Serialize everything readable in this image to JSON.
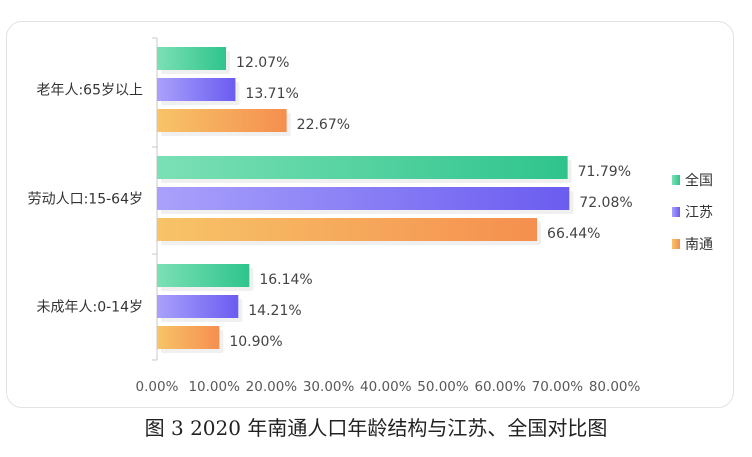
{
  "chart_data": {
    "type": "bar",
    "orientation": "horizontal",
    "categories": [
      "老年人:65岁以上",
      "劳动人口:15-64岁",
      "未成年人:0-14岁"
    ],
    "series": [
      {
        "name": "全国",
        "values": [
          12.07,
          71.79,
          16.14
        ],
        "labels": [
          "12.07%",
          "71.79%",
          "16.14%"
        ],
        "color": "#2fc48c",
        "color_light": "#7be0b5"
      },
      {
        "name": "江苏",
        "values": [
          13.71,
          72.08,
          14.21
        ],
        "labels": [
          "13.71%",
          "72.08%",
          "14.21%"
        ],
        "color": "#6b5cf0",
        "color_light": "#a9a1fb"
      },
      {
        "name": "南通",
        "values": [
          22.67,
          66.44,
          10.9
        ],
        "labels": [
          "22.67%",
          "66.44%",
          "10.90%"
        ],
        "color": "#f58f4f",
        "color_light": "#f7c468"
      }
    ],
    "x_ticks": [
      "0.00%",
      "10.00%",
      "20.00%",
      "30.00%",
      "40.00%",
      "50.00%",
      "60.00%",
      "70.00%",
      "80.00%"
    ],
    "xlim": [
      0,
      80
    ],
    "legend_position": "right",
    "grid": false
  },
  "caption": "图 3   2020 年南通人口年龄结构与江苏、全国对比图"
}
